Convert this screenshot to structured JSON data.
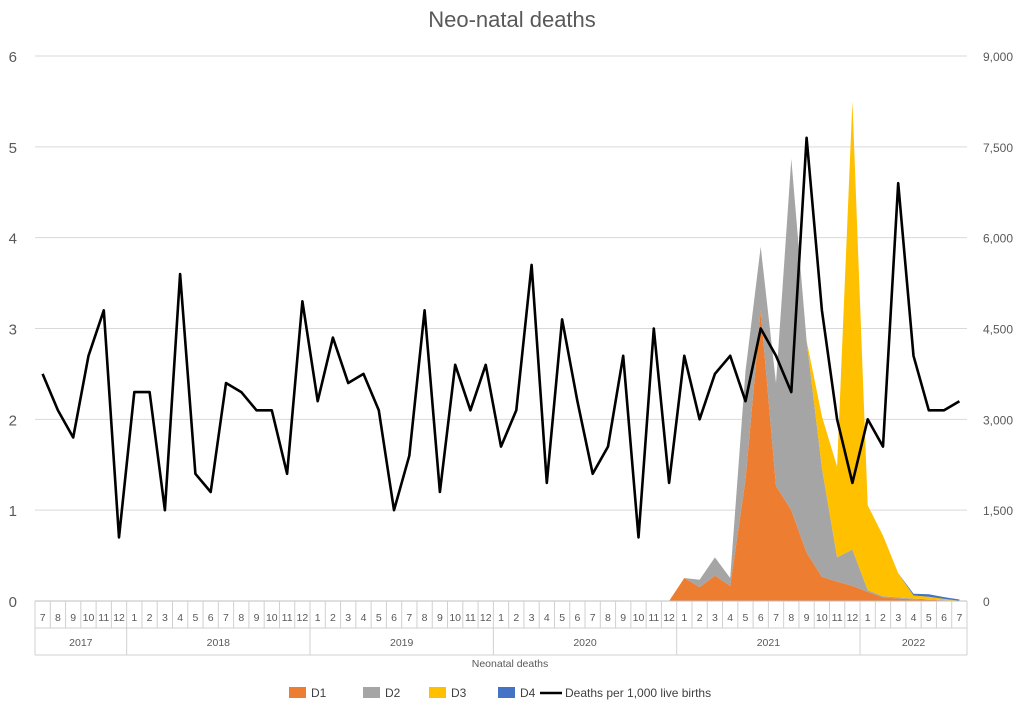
{
  "chart_data": {
    "type": "area",
    "title": "Neo-natal deaths",
    "xlabel": "Neonatal deaths",
    "ylabel": "",
    "y2label": "",
    "ylim": [
      0,
      6
    ],
    "y_ticks": [
      "0",
      "1",
      "2",
      "3",
      "4",
      "5",
      "6"
    ],
    "y2lim": [
      0,
      9000
    ],
    "y2_ticks": [
      "0",
      "1,500",
      "3,000",
      "4,500",
      "6,000",
      "7,500",
      "9,000"
    ],
    "grid": true,
    "legend_position": "bottom",
    "categories": [
      "7",
      "8",
      "9",
      "10",
      "11",
      "12",
      "1",
      "2",
      "3",
      "4",
      "5",
      "6",
      "7",
      "8",
      "9",
      "10",
      "11",
      "12",
      "1",
      "2",
      "3",
      "4",
      "5",
      "6",
      "7",
      "8",
      "9",
      "10",
      "11",
      "12",
      "1",
      "2",
      "3",
      "4",
      "5",
      "6",
      "7",
      "8",
      "9",
      "10",
      "11",
      "12",
      "1",
      "2",
      "3",
      "4",
      "5",
      "6",
      "7",
      "8",
      "9",
      "10",
      "11",
      "12",
      "1",
      "2",
      "3",
      "4",
      "5",
      "6",
      "7"
    ],
    "year_groups": [
      {
        "label": "2017",
        "start": 0,
        "count": 6
      },
      {
        "label": "2018",
        "start": 6,
        "count": 12
      },
      {
        "label": "2019",
        "start": 18,
        "count": 12
      },
      {
        "label": "2020",
        "start": 30,
        "count": 12
      },
      {
        "label": "2021",
        "start": 42,
        "count": 12
      },
      {
        "label": "2022",
        "start": 54,
        "count": 7
      }
    ],
    "series": [
      {
        "name": "D1",
        "kind": "area",
        "axis": "right",
        "color": "#ED7D31",
        "values": [
          0,
          0,
          0,
          0,
          0,
          0,
          0,
          0,
          0,
          0,
          0,
          0,
          0,
          0,
          0,
          0,
          0,
          0,
          0,
          0,
          0,
          0,
          0,
          0,
          0,
          0,
          0,
          0,
          0,
          0,
          0,
          0,
          0,
          0,
          0,
          0,
          0,
          0,
          0,
          0,
          0,
          0,
          380,
          230,
          420,
          250,
          2000,
          4800,
          1900,
          1500,
          800,
          400,
          320,
          250,
          150,
          60,
          40,
          30,
          20,
          10,
          5
        ]
      },
      {
        "name": "D2",
        "kind": "area",
        "axis": "right",
        "color": "#A5A5A5",
        "values": [
          0,
          0,
          0,
          0,
          0,
          0,
          0,
          0,
          0,
          0,
          0,
          0,
          0,
          0,
          0,
          0,
          0,
          0,
          0,
          0,
          0,
          0,
          0,
          0,
          0,
          0,
          0,
          0,
          0,
          0,
          0,
          0,
          0,
          0,
          0,
          0,
          0,
          0,
          0,
          0,
          0,
          0,
          0,
          120,
          300,
          130,
          1800,
          1050,
          1700,
          5800,
          3500,
          1800,
          400,
          600,
          30,
          20,
          20,
          10,
          10,
          5,
          0
        ]
      },
      {
        "name": "D3",
        "kind": "area",
        "axis": "right",
        "color": "#FFC000",
        "values": [
          0,
          0,
          0,
          0,
          0,
          0,
          0,
          0,
          0,
          0,
          0,
          0,
          0,
          0,
          0,
          0,
          0,
          0,
          0,
          0,
          0,
          0,
          0,
          0,
          0,
          0,
          0,
          0,
          0,
          0,
          0,
          0,
          0,
          0,
          0,
          0,
          0,
          0,
          0,
          0,
          0,
          0,
          0,
          0,
          0,
          0,
          0,
          0,
          0,
          0,
          0,
          850,
          1500,
          7400,
          1400,
          1000,
          400,
          50,
          40,
          20,
          0
        ]
      },
      {
        "name": "D4",
        "kind": "area",
        "axis": "right",
        "color": "#4472C4",
        "values": [
          0,
          0,
          0,
          0,
          0,
          0,
          0,
          0,
          0,
          0,
          0,
          0,
          0,
          0,
          0,
          0,
          0,
          0,
          0,
          0,
          0,
          0,
          0,
          0,
          0,
          0,
          0,
          0,
          0,
          0,
          0,
          0,
          0,
          0,
          0,
          0,
          0,
          0,
          0,
          0,
          0,
          0,
          0,
          0,
          0,
          0,
          0,
          0,
          0,
          0,
          0,
          0,
          0,
          0,
          0,
          0,
          0,
          30,
          40,
          30,
          20
        ]
      },
      {
        "name": "Deaths per 1,000 live births",
        "kind": "line",
        "axis": "left",
        "color": "#000000",
        "values": [
          2.5,
          2.1,
          1.8,
          2.7,
          3.2,
          0.7,
          2.3,
          2.3,
          1.0,
          3.6,
          1.4,
          1.2,
          2.4,
          2.3,
          2.1,
          2.1,
          1.4,
          3.3,
          2.2,
          2.9,
          2.4,
          2.5,
          2.1,
          1.0,
          1.6,
          3.2,
          1.2,
          2.6,
          2.1,
          2.6,
          1.7,
          2.1,
          3.7,
          1.3,
          3.1,
          2.2,
          1.4,
          1.7,
          2.7,
          0.7,
          3.0,
          1.3,
          2.7,
          2.0,
          2.5,
          2.7,
          2.2,
          3.0,
          2.7,
          2.3,
          5.1,
          3.2,
          2.0,
          1.3,
          2.0,
          1.7,
          4.6,
          2.7,
          2.1,
          2.1,
          2.2
        ]
      }
    ]
  }
}
